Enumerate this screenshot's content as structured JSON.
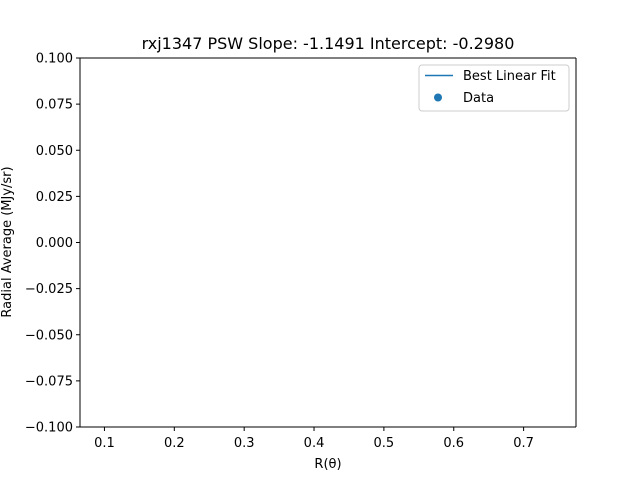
{
  "chart_data": {
    "type": "scatter",
    "title": "rxj1347  PSW  Slope: -1.1491  Intercept: -0.2980",
    "xlabel": "R(θ)",
    "ylabel": "Radial Average (MJy/sr)",
    "xlim": [
      0.065,
      0.775
    ],
    "ylim": [
      -0.1,
      0.1
    ],
    "x_ticks": [
      0.1,
      0.2,
      0.3,
      0.4,
      0.5,
      0.6,
      0.7
    ],
    "x_tick_labels": [
      "0.1",
      "0.2",
      "0.3",
      "0.4",
      "0.5",
      "0.6",
      "0.7"
    ],
    "y_ticks": [
      0.1,
      0.075,
      0.05,
      0.025,
      0.0,
      -0.025,
      -0.05,
      -0.075,
      -0.1
    ],
    "y_tick_labels": [
      "0.100",
      "0.075",
      "0.050",
      "0.025",
      "0.000",
      "−0.025",
      "−0.050",
      "−0.075",
      "−0.100"
    ],
    "grid": false,
    "legend_position": "top-right",
    "series": [
      {
        "name": "Best Linear Fit",
        "kind": "line",
        "color": "#1f77b4",
        "x": [],
        "y": []
      },
      {
        "name": "Data",
        "kind": "scatter",
        "color": "#1f77b4",
        "x": [],
        "y": []
      }
    ]
  }
}
